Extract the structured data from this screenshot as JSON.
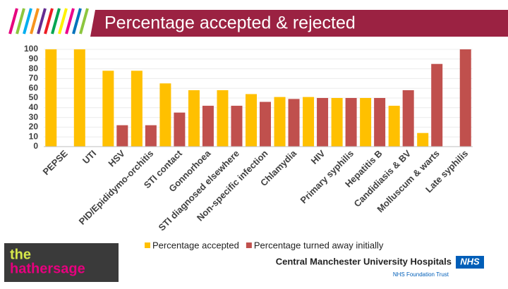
{
  "chart_data": {
    "type": "bar",
    "title": "Percentage accepted & rejected",
    "categories": [
      "PEPSE",
      "UTI",
      "HSV",
      "PID/Epididymo-orchitis",
      "STI contact",
      "Gonnorhoea",
      "STI diagnosed elsewhere",
      "Non-specific infection",
      "Chlamydia",
      "HIV",
      "Primary syphilis",
      "Hepatitis B",
      "Candidiasis & BV",
      "Molluscum & warts",
      "Late syphilis"
    ],
    "series": [
      {
        "name": "Percentage accepted",
        "color": "#ffc000",
        "values": [
          100,
          100,
          78,
          78,
          65,
          58,
          58,
          54,
          51,
          51,
          50,
          50,
          42,
          14,
          0
        ]
      },
      {
        "name": "Percentage turned away initially",
        "color": "#c0504d",
        "values": [
          0,
          0,
          22,
          22,
          35,
          42,
          42,
          46,
          49,
          50,
          50,
          50,
          58,
          85,
          100
        ]
      }
    ],
    "ylim": [
      0,
      100
    ],
    "yticks": [
      0,
      10,
      20,
      30,
      40,
      50,
      60,
      70,
      80,
      90,
      100
    ],
    "grid": true,
    "legend": "bottom"
  },
  "logo": {
    "line1": "the",
    "line2": "hathersage"
  },
  "trust": {
    "name": "Central Manchester University Hospitals",
    "badge": "NHS",
    "sub": "NHS Foundation Trust"
  }
}
